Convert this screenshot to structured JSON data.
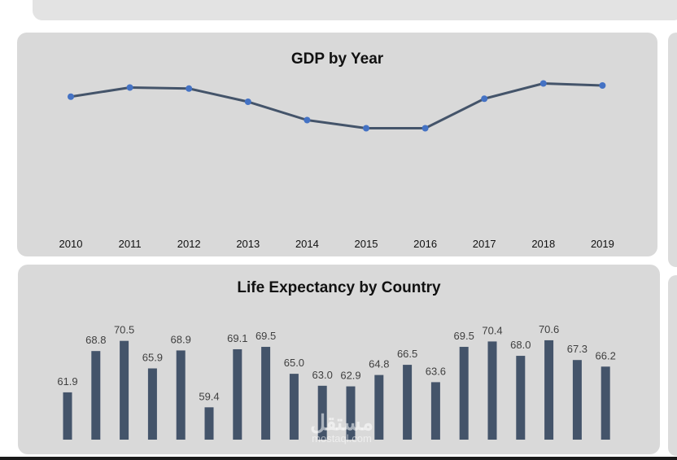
{
  "watermark": {
    "main": "مستقل",
    "sub": "mostaql.com"
  },
  "chart_data": [
    {
      "type": "line",
      "title": "GDP by Year",
      "x": [
        "2010",
        "2011",
        "2012",
        "2013",
        "2014",
        "2015",
        "2016",
        "2017",
        "2018",
        "2019"
      ],
      "values": [
        0.89,
        0.98,
        0.97,
        0.84,
        0.66,
        0.58,
        0.58,
        0.87,
        1.02,
        1.0
      ],
      "ylim": [
        0,
        1.2
      ],
      "grid": false,
      "line_color": "#44546a",
      "marker_color": "#4472c4"
    },
    {
      "type": "bar",
      "title": "Life Expectancy by Country",
      "values": [
        61.9,
        68.8,
        70.5,
        65.9,
        68.9,
        59.4,
        69.1,
        69.5,
        65.0,
        63.0,
        62.9,
        64.8,
        66.5,
        63.6,
        69.5,
        70.4,
        68.0,
        70.6,
        67.3,
        66.2
      ],
      "value_labels": [
        "61.9",
        "68.8",
        "70.5",
        "65.9",
        "68.9",
        "59.4",
        "69.1",
        "69.5",
        "65.0",
        "63.0",
        "62.9",
        "64.8",
        "66.5",
        "63.6",
        "69.5",
        "70.4",
        "68.0",
        "70.6",
        "67.3",
        "66.2"
      ],
      "ylim": [
        54,
        71
      ],
      "grid": false,
      "bar_color": "#44546a"
    }
  ]
}
